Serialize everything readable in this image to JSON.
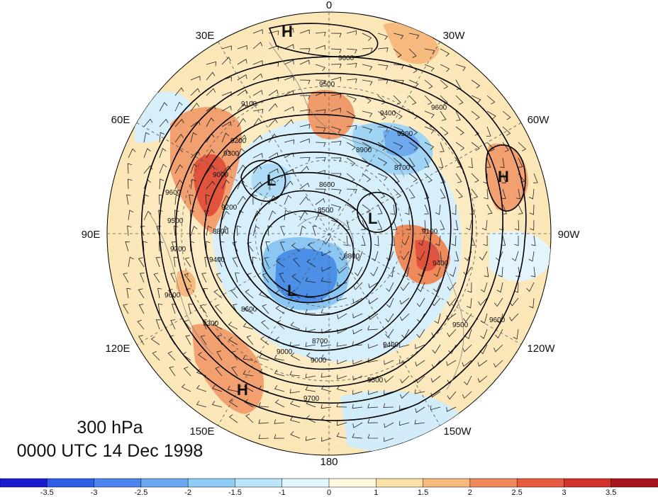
{
  "map": {
    "level": "300 hPa",
    "valid_time": "0000 UTC 14 Dec 1998",
    "projection": "north-polar-stereographic",
    "longitude_labels": [
      "0",
      "30W",
      "60W",
      "90W",
      "120W",
      "150W",
      "180",
      "150E",
      "120E",
      "90E",
      "60E",
      "30E"
    ],
    "contour_labels": [
      "9600",
      "9500",
      "9400",
      "9300",
      "9200",
      "9100",
      "9000",
      "8900",
      "8800",
      "8700",
      "8600",
      "8500",
      "9700",
      "9600",
      "9500",
      "9400",
      "9300",
      "9600",
      "9500",
      "9100",
      "9000",
      "8700",
      "9000",
      "9400",
      "9500",
      "9600",
      "9700",
      "9600",
      "8600",
      "8800",
      "9400",
      "9300",
      "9200"
    ],
    "centers": [
      {
        "label": "H",
        "type": "high"
      },
      {
        "label": "H",
        "type": "high"
      },
      {
        "label": "H",
        "type": "high"
      },
      {
        "label": "L",
        "type": "low"
      },
      {
        "label": "L",
        "type": "low"
      },
      {
        "label": "L",
        "type": "low"
      }
    ]
  },
  "colorbar": {
    "ticks": [
      "-3.5",
      "-3",
      "-2.5",
      "-2",
      "-1.5",
      "-1",
      "0",
      "1",
      "1.5",
      "2",
      "2.5",
      "3",
      "3.5"
    ],
    "colors": [
      "#1a1ad0",
      "#2f5ee8",
      "#4a86ee",
      "#6aa9f2",
      "#8fcdf6",
      "#b9e6fb",
      "#e3f5fd",
      "#fff9e0",
      "#fbe1a8",
      "#f6b97e",
      "#ef8a5a",
      "#e65a3f",
      "#d3322c",
      "#a8141c"
    ]
  },
  "palette": {
    "contour": "#000000",
    "graticule": "#555555",
    "coast": "#777777"
  }
}
